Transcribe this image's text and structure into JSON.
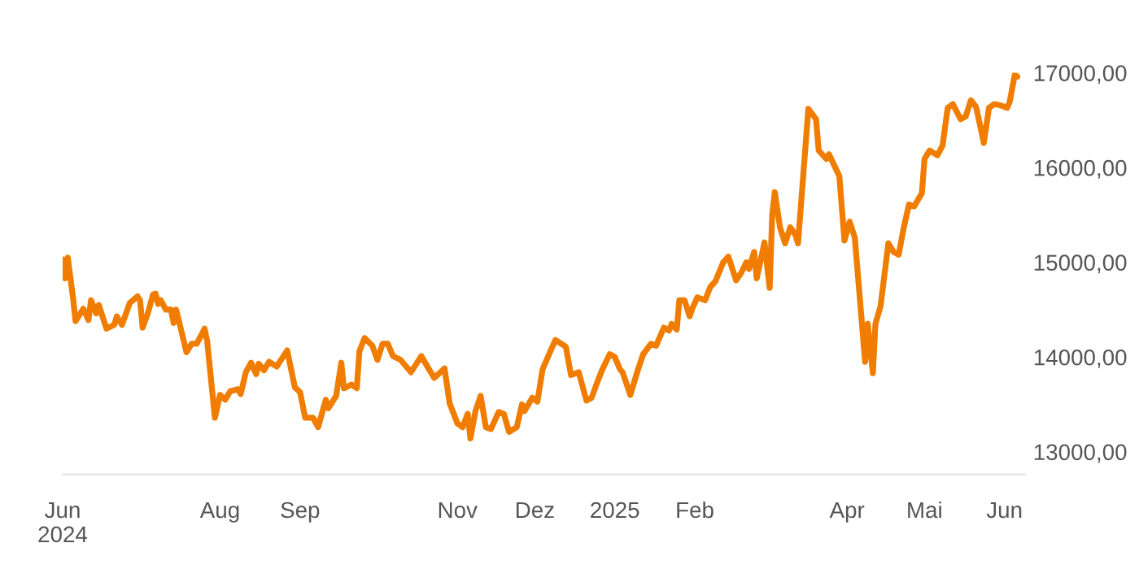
{
  "chart_data": {
    "type": "line",
    "x": [
      "2024-06-01",
      "2024-06-02",
      "2024-06-03",
      "2024-06-05",
      "2024-06-06",
      "2024-06-09",
      "2024-06-11",
      "2024-06-12",
      "2024-06-14",
      "2024-06-15",
      "2024-06-18",
      "2024-06-21",
      "2024-06-22",
      "2024-06-24",
      "2024-06-27",
      "2024-06-30",
      "2024-07-01",
      "2024-07-02",
      "2024-07-04",
      "2024-07-06",
      "2024-07-07",
      "2024-07-08",
      "2024-07-09",
      "2024-07-11",
      "2024-07-13",
      "2024-07-14",
      "2024-07-15",
      "2024-07-19",
      "2024-07-21",
      "2024-07-23",
      "2024-07-26",
      "2024-07-27",
      "2024-07-30",
      "2024-08-01",
      "2024-08-03",
      "2024-08-05",
      "2024-08-08",
      "2024-08-09",
      "2024-08-11",
      "2024-08-13",
      "2024-08-15",
      "2024-08-16",
      "2024-08-18",
      "2024-08-20",
      "2024-08-23",
      "2024-08-27",
      "2024-08-30",
      "2024-09-01",
      "2024-09-03",
      "2024-09-06",
      "2024-09-08",
      "2024-09-11",
      "2024-09-12",
      "2024-09-15",
      "2024-09-17",
      "2024-09-18",
      "2024-09-21",
      "2024-09-23",
      "2024-09-24",
      "2024-09-26",
      "2024-09-29",
      "2024-10-01",
      "2024-10-03",
      "2024-10-05",
      "2024-10-07",
      "2024-10-10",
      "2024-10-14",
      "2024-10-18",
      "2024-10-21",
      "2024-10-23",
      "2024-10-25",
      "2024-10-27",
      "2024-10-29",
      "2024-11-01",
      "2024-11-03",
      "2024-11-05",
      "2024-11-06",
      "2024-11-08",
      "2024-11-10",
      "2024-11-12",
      "2024-11-14",
      "2024-11-17",
      "2024-11-19",
      "2024-11-21",
      "2024-11-24",
      "2024-11-26",
      "2024-11-27",
      "2024-11-30",
      "2024-12-02",
      "2024-12-04",
      "2024-12-07",
      "2024-12-09",
      "2024-12-13",
      "2024-12-15",
      "2024-12-18",
      "2024-12-21",
      "2024-12-23",
      "2024-12-25",
      "2024-12-27",
      "2024-12-30",
      "2025-01-01",
      "2025-01-03",
      "2025-01-04",
      "2025-01-07",
      "2025-01-10",
      "2025-01-12",
      "2025-01-15",
      "2025-01-17",
      "2025-01-20",
      "2025-01-22",
      "2025-01-23",
      "2025-01-25",
      "2025-01-26",
      "2025-01-28",
      "2025-01-30",
      "2025-01-31",
      "2025-02-02",
      "2025-02-05",
      "2025-02-07",
      "2025-02-09",
      "2025-02-12",
      "2025-02-14",
      "2025-02-17",
      "2025-02-19",
      "2025-02-21",
      "2025-02-22",
      "2025-02-24",
      "2025-02-25",
      "2025-02-28",
      "2025-03-02",
      "2025-03-03",
      "2025-03-04",
      "2025-03-06",
      "2025-03-08",
      "2025-03-10",
      "2025-03-12",
      "2025-03-13",
      "2025-03-17",
      "2025-03-20",
      "2025-03-21",
      "2025-03-24",
      "2025-03-25",
      "2025-03-29",
      "2025-03-31",
      "2025-04-02",
      "2025-04-04",
      "2025-04-08",
      "2025-04-09",
      "2025-04-11",
      "2025-04-12",
      "2025-04-14",
      "2025-04-17",
      "2025-04-19",
      "2025-04-21",
      "2025-04-23",
      "2025-04-25",
      "2025-04-27",
      "2025-04-30",
      "2025-05-01",
      "2025-05-03",
      "2025-05-06",
      "2025-05-08",
      "2025-05-10",
      "2025-05-12",
      "2025-05-15",
      "2025-05-17",
      "2025-05-19",
      "2025-05-21",
      "2025-05-24",
      "2025-05-26",
      "2025-05-28",
      "2025-05-30",
      "2025-06-02",
      "2025-06-03",
      "2025-06-05",
      "2025-06-06"
    ],
    "series": [
      {
        "color": "#f07d00",
        "values": [
          15030,
          14830,
          15050,
          14630,
          14380,
          14510,
          14390,
          14600,
          14460,
          14550,
          14300,
          14340,
          14430,
          14340,
          14570,
          14640,
          14600,
          14310,
          14460,
          14660,
          14670,
          14560,
          14600,
          14500,
          14500,
          14360,
          14500,
          14050,
          14140,
          14140,
          14300,
          14170,
          13360,
          13600,
          13550,
          13640,
          13660,
          13610,
          13840,
          13940,
          13820,
          13930,
          13860,
          13950,
          13900,
          14070,
          13680,
          13630,
          13360,
          13360,
          13260,
          13550,
          13460,
          13590,
          13940,
          13670,
          13710,
          13670,
          14060,
          14200,
          14120,
          13970,
          14140,
          14140,
          14010,
          13970,
          13840,
          14010,
          13870,
          13780,
          13830,
          13880,
          13510,
          13300,
          13260,
          13400,
          13140,
          13430,
          13590,
          13260,
          13240,
          13420,
          13400,
          13210,
          13260,
          13500,
          13430,
          13570,
          13530,
          13870,
          14060,
          14180,
          14110,
          13810,
          13840,
          13540,
          13570,
          13720,
          13860,
          14030,
          14000,
          13870,
          13840,
          13600,
          13870,
          14030,
          14140,
          14120,
          14310,
          14280,
          14350,
          14290,
          14600,
          14600,
          14430,
          14510,
          14630,
          14600,
          14740,
          14800,
          15000,
          15060,
          14810,
          14890,
          15000,
          14930,
          15110,
          14830,
          15210,
          14730,
          15500,
          15740,
          15370,
          15200,
          15370,
          15290,
          15200,
          16620,
          16510,
          16180,
          16090,
          16140,
          15910,
          15230,
          15430,
          15260,
          13950,
          14350,
          13830,
          14350,
          14540,
          15200,
          15110,
          15080,
          15370,
          15610,
          15590,
          15730,
          16090,
          16180,
          16130,
          16230,
          16630,
          16670,
          16510,
          16540,
          16710,
          16640,
          16260,
          16630,
          16670,
          16660,
          16630,
          16690,
          16980,
          16960
        ]
      }
    ],
    "xlim": [
      "2024-06-01",
      "2025-06-09"
    ],
    "xticks": [
      {
        "value": "2024-06-01",
        "label": "Jun\n2024"
      },
      {
        "value": "2024-08-01",
        "label": "Aug"
      },
      {
        "value": "2024-09-01",
        "label": "Sep"
      },
      {
        "value": "2024-11-01",
        "label": "Nov"
      },
      {
        "value": "2024-12-01",
        "label": "Dez"
      },
      {
        "value": "2025-01-01",
        "label": "2025"
      },
      {
        "value": "2025-02-01",
        "label": "Feb"
      },
      {
        "value": "2025-04-01",
        "label": "Apr"
      },
      {
        "value": "2025-05-01",
        "label": "Mai"
      },
      {
        "value": "2025-06-01",
        "label": "Jun"
      }
    ],
    "ylim": [
      13000,
      17000
    ],
    "yticks": [
      {
        "value": 13000,
        "label": "13000,00"
      },
      {
        "value": 14000,
        "label": "14000,00"
      },
      {
        "value": 15000,
        "label": "15000,00"
      },
      {
        "value": 16000,
        "label": "16000,00"
      },
      {
        "value": 17000,
        "label": "17000,00"
      }
    ],
    "grid": false,
    "legend": false
  }
}
